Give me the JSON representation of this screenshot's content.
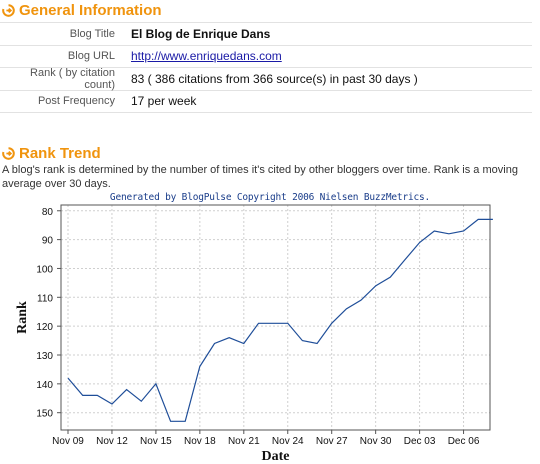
{
  "general": {
    "title": "General Information",
    "rows": [
      {
        "label": "Blog Title",
        "value": "El Blog de Enrique Dans"
      },
      {
        "label": "Blog URL",
        "value": "http://www.enriquedans.com"
      },
      {
        "label": "Rank ( by citation count)",
        "value": "83 ( 386 citations from 366 source(s) in past 30 days )"
      },
      {
        "label": "Post Frequency",
        "value": "17 per week"
      }
    ]
  },
  "rank_trend": {
    "title": "Rank Trend",
    "description": "A blog's rank is determined by the number of times it's cited by other bloggers over time. Rank is a moving average over 30 days.",
    "copyright": "Generated by BlogPulse Copyright 2006 Nielsen BuzzMetrics."
  },
  "chart_data": {
    "type": "line",
    "xlabel": "Date",
    "ylabel": "Rank",
    "y_inverted": true,
    "ylim": [
      78,
      156
    ],
    "y_ticks": [
      80,
      90,
      100,
      110,
      120,
      130,
      140,
      150
    ],
    "x_tick_labels": [
      "Nov 09",
      "Nov 12",
      "Nov 15",
      "Nov 18",
      "Nov 21",
      "Nov 24",
      "Nov 27",
      "Nov 30",
      "Dec 03",
      "Dec 06"
    ],
    "x": [
      "Nov 09",
      "Nov 10",
      "Nov 11",
      "Nov 12",
      "Nov 13",
      "Nov 14",
      "Nov 15",
      "Nov 16",
      "Nov 17",
      "Nov 18",
      "Nov 19",
      "Nov 20",
      "Nov 21",
      "Nov 22",
      "Nov 23",
      "Nov 24",
      "Nov 25",
      "Nov 26",
      "Nov 27",
      "Nov 28",
      "Nov 29",
      "Nov 30",
      "Dec 01",
      "Dec 02",
      "Dec 03",
      "Dec 04",
      "Dec 05",
      "Dec 06",
      "Dec 07",
      "Dec 08"
    ],
    "series": [
      {
        "values": [
          138,
          144,
          144,
          147,
          142,
          146,
          140,
          153,
          153,
          134,
          126,
          124,
          126,
          119,
          119,
          119,
          125,
          126,
          119,
          114,
          111,
          106,
          103,
          97,
          91,
          87,
          88,
          87,
          83,
          83
        ]
      }
    ],
    "grid": true,
    "line_color": "#1f4e99"
  }
}
